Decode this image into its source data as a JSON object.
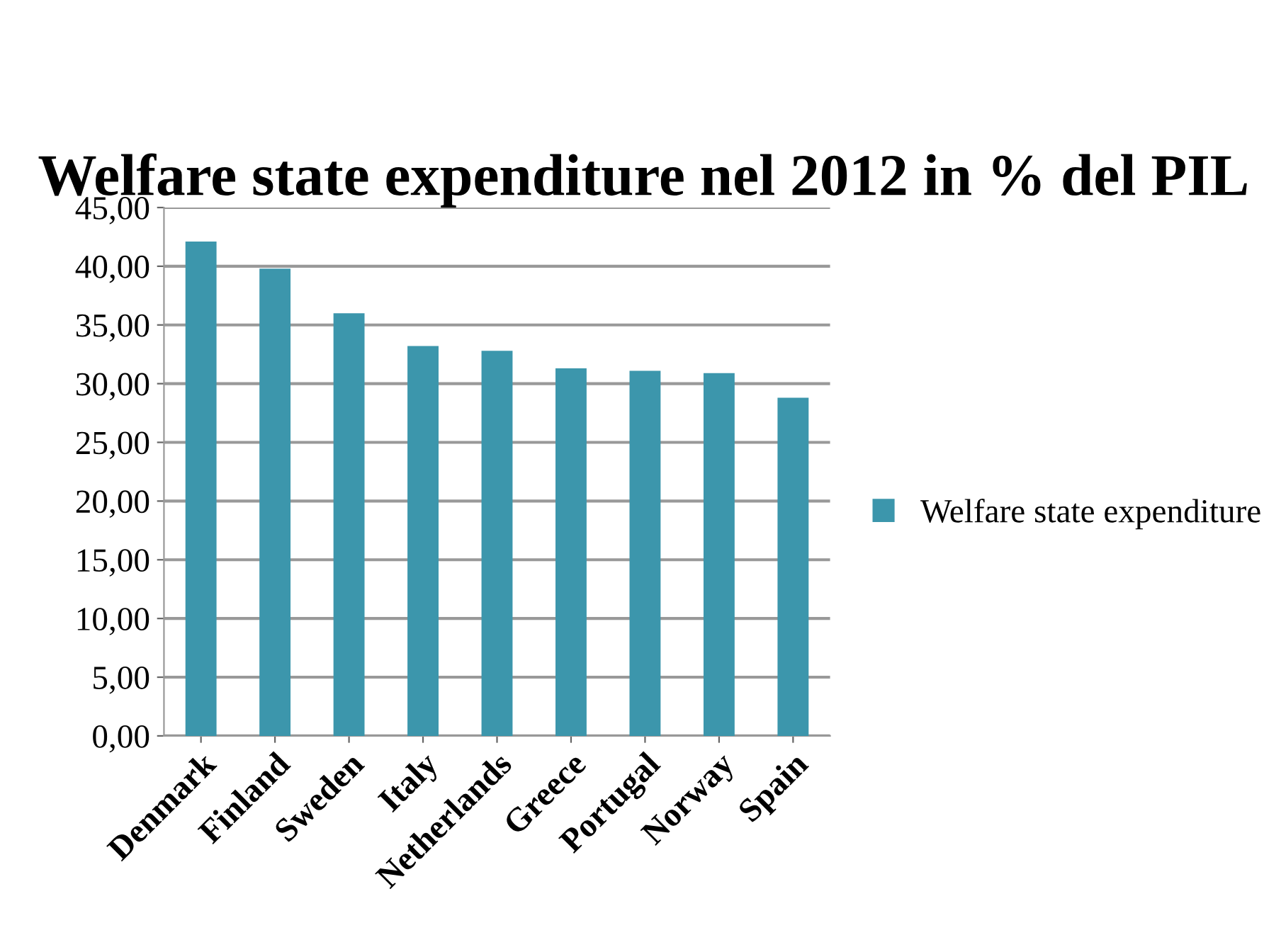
{
  "chart_data": {
    "type": "bar",
    "title": "Welfare state expenditure nel 2012 in % del PIL",
    "categories": [
      "Denmark",
      "Finland",
      "Sweden",
      "Italy",
      "Netherlands",
      "Greece",
      "Portugal",
      "Norway",
      "Spain"
    ],
    "series": [
      {
        "name": "Welfare state expenditure",
        "color": "#3c96ac",
        "values": [
          42.1,
          39.8,
          36.0,
          33.2,
          32.8,
          31.3,
          31.1,
          30.9,
          28.8
        ]
      }
    ],
    "ylim": [
      0,
      45
    ],
    "yticks": [
      {
        "value": 0,
        "label": "0,00"
      },
      {
        "value": 5,
        "label": "5,00"
      },
      {
        "value": 10,
        "label": "10,00"
      },
      {
        "value": 15,
        "label": "15,00"
      },
      {
        "value": 20,
        "label": "20,00"
      },
      {
        "value": 25,
        "label": "25,00"
      },
      {
        "value": 30,
        "label": "30,00"
      },
      {
        "value": 35,
        "label": "35,00"
      },
      {
        "value": 40,
        "label": "40,00"
      },
      {
        "value": 45,
        "label": "45,00"
      }
    ],
    "grid": "y",
    "legend": "right"
  }
}
